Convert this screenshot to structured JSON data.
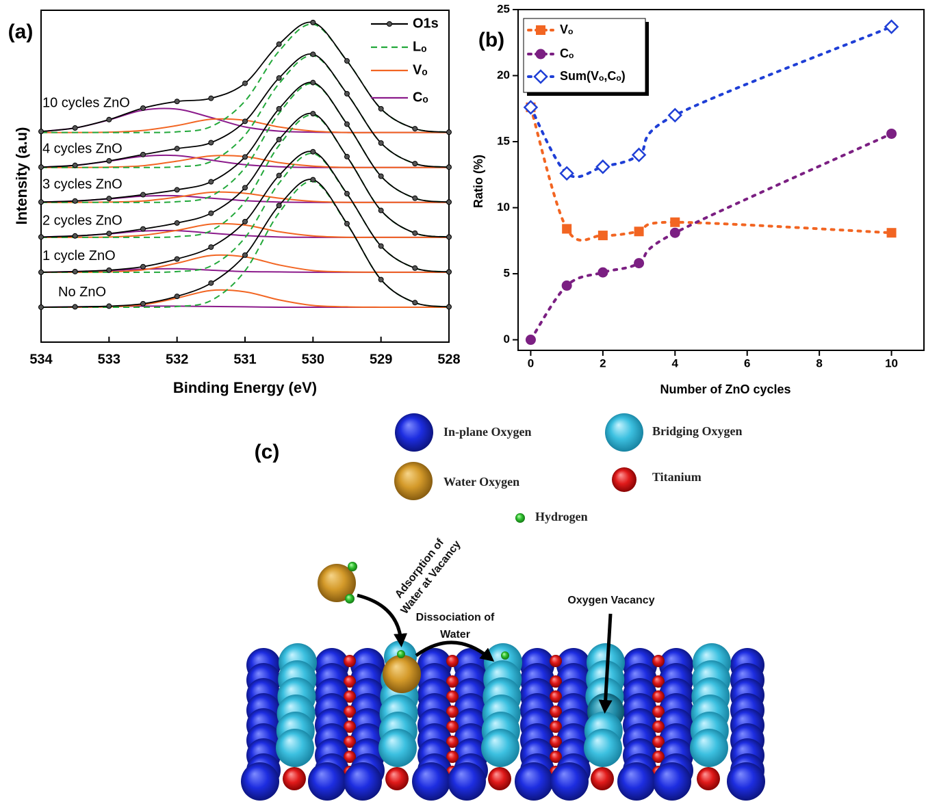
{
  "chart_data": [
    {
      "type": "line",
      "panel_label": "(a)",
      "xlabel": "Binding Energy (eV)",
      "ylabel": "Intensity (a.u)",
      "x": [
        534,
        533.5,
        533,
        532.5,
        532,
        531.5,
        531,
        530.5,
        530,
        529.5,
        529,
        528.5,
        528
      ],
      "xlim": [
        534,
        528
      ],
      "xticks": [
        534,
        533,
        532,
        531,
        530,
        529,
        528
      ],
      "ylim": [
        -10,
        85
      ],
      "legend": "upper right",
      "spectrum_labels": [
        "No ZnO",
        "1 cycle ZnO",
        "2 cycles ZnO",
        "3 cycles ZnO",
        "4 cycles ZnO",
        "10 cycles ZnO"
      ],
      "series": [
        {
          "name": "O1s",
          "color": "#000000",
          "style": "line-marker",
          "values": [
            [
              0,
              0.1,
              0.3,
              1,
              3.1,
              6.9,
              14.9,
              29.1,
              36.5,
              23.9,
              7.9,
              1.3,
              0.1
            ],
            [
              10,
              10.2,
              10.6,
              11.6,
              13.8,
              17.2,
              24.5,
              37.7,
              44.5,
              32.5,
              17.5,
              11.2,
              10.1
            ],
            [
              20.1,
              20.4,
              21.1,
              22.4,
              24.1,
              26.9,
              34.2,
              48,
              55.4,
              43.1,
              27.7,
              21.2,
              20.1
            ],
            [
              30.1,
              30.4,
              31.1,
              32.2,
              33.6,
              35.9,
              43,
              56.8,
              64.3,
              52.4,
              37.5,
              31.2,
              30.1
            ],
            [
              40.1,
              40.6,
              41.9,
              43.7,
              45.4,
              47.1,
              53.2,
              65.6,
              72.4,
              61.1,
              47,
              41.1,
              40.1
            ],
            [
              50.3,
              51.3,
              53.7,
              57,
              58.9,
              59.8,
              64.1,
              75.3,
              81.5,
              70.5,
              56.8,
              51.1,
              50.1
            ]
          ]
        },
        {
          "name": "Lₒ",
          "color": "#22a83a",
          "style": "dashed",
          "values": [
            [
              0,
              0,
              0,
              0,
              0.2,
              1.9,
              10.4,
              27,
              36,
              23.8,
              7.9,
              1.3,
              0.1
            ],
            [
              10,
              10,
              10,
              10,
              10.2,
              11.8,
              19.9,
              35.5,
              44,
              32.4,
              17.5,
              11.2,
              10.1
            ],
            [
              20,
              20,
              20,
              20,
              20.2,
              21.9,
              30.2,
              46.3,
              55,
              43.1,
              27.7,
              21.2,
              20.1
            ],
            [
              30,
              30,
              30,
              30,
              30.2,
              31.8,
              39.9,
              55.5,
              64,
              52.4,
              37.5,
              31.2,
              30.1
            ],
            [
              40,
              40,
              40,
              40,
              40.2,
              41.7,
              49.3,
              64,
              72,
              61.1,
              47,
              41.1,
              40.1
            ],
            [
              50,
              50,
              50,
              50,
              50.2,
              51.7,
              59,
              73.3,
              81,
              70.5,
              56.8,
              51.1,
              50.1
            ]
          ]
        },
        {
          "name": "Vₒ",
          "color": "#f26522",
          "style": "solid",
          "values": [
            [
              0,
              0,
              0.1,
              0.7,
              2.6,
              4.8,
              4.4,
              2.1,
              0.5,
              0.1,
              0,
              0,
              0
            ],
            [
              10,
              10,
              10.1,
              10.7,
              12.6,
              14.8,
              14.4,
              12.1,
              10.5,
              10.1,
              10,
              10,
              10
            ],
            [
              20,
              20,
              20.1,
              20.6,
              22,
              23.8,
              23.5,
              21.6,
              20.4,
              20,
              20,
              20,
              20
            ],
            [
              30,
              30,
              30.1,
              30.4,
              31.5,
              32.9,
              32.6,
              31.2,
              30.3,
              30,
              30,
              30,
              30
            ],
            [
              40,
              40,
              40.1,
              40.5,
              41.8,
              43.3,
              43.1,
              41.4,
              40.4,
              40,
              40,
              40,
              40
            ],
            [
              50,
              50,
              50.1,
              50.6,
              52,
              53.8,
              53.5,
              51.6,
              50.4,
              50,
              50,
              50,
              50
            ]
          ]
        },
        {
          "name": "Cₒ",
          "color": "#8b1a8b",
          "style": "solid",
          "values": [
            [
              0,
              0.1,
              0.2,
              0.3,
              0.3,
              0.2,
              0.1,
              0,
              0,
              0,
              0,
              0,
              0
            ],
            [
              10,
              10.2,
              10.5,
              10.9,
              11,
              10.6,
              10.2,
              10.1,
              10,
              10,
              10,
              10,
              10
            ],
            [
              20.1,
              20.4,
              21,
              21.8,
              21.9,
              21.2,
              20.5,
              20.1,
              20,
              20,
              20,
              20,
              20
            ],
            [
              30.1,
              30.4,
              31,
              31.8,
              31.9,
              31.2,
              30.5,
              30.1,
              30,
              30,
              30,
              30,
              30
            ],
            [
              40.1,
              40.6,
              41.8,
              43.2,
              43.4,
              42.1,
              40.8,
              40.2,
              40,
              40,
              40,
              40,
              40
            ],
            [
              50.3,
              51.3,
              53.6,
              56.4,
              56.7,
              54.3,
              51.6,
              50.4,
              50.1,
              50,
              50,
              50,
              50
            ]
          ]
        }
      ]
    },
    {
      "type": "scatter",
      "panel_label": "(b)",
      "xlabel": "Number of ZnO cycles",
      "ylabel": "Ratio (%)",
      "x": [
        0,
        1,
        2,
        3,
        4,
        10
      ],
      "xlim": [
        -0.35,
        10.9
      ],
      "xticks": [
        0,
        2,
        4,
        6,
        8,
        10
      ],
      "ylim": [
        -0.8,
        25
      ],
      "yticks": [
        0,
        5,
        10,
        15,
        20,
        25
      ],
      "legend": "upper left",
      "series": [
        {
          "name": "Vₒ",
          "color": "#f26522",
          "marker": "square",
          "values": [
            17.6,
            8.4,
            7.9,
            8.2,
            8.9,
            8.1
          ]
        },
        {
          "name": "Cₒ",
          "color": "#7b1f82",
          "marker": "circle",
          "values": [
            0,
            4.1,
            5.1,
            5.8,
            8.1,
            15.6
          ]
        },
        {
          "name": "Sum(Vₒ,Cₒ)",
          "color": "#1f3fd6",
          "marker": "diamond",
          "values": [
            17.6,
            12.6,
            13.1,
            14,
            17,
            23.7
          ]
        }
      ]
    }
  ],
  "diagram": {
    "panel_label": "(c)",
    "legend": [
      "In-plane Oxygen",
      "Bridging Oxygen",
      "Water Oxygen",
      "Titanium",
      "Hydrogen"
    ],
    "annotations": [
      [
        "Adsorption of",
        "Water at Vacancy"
      ],
      [
        "Dissociation of",
        "Water"
      ],
      [
        "Oxygen Vacancy"
      ]
    ]
  }
}
